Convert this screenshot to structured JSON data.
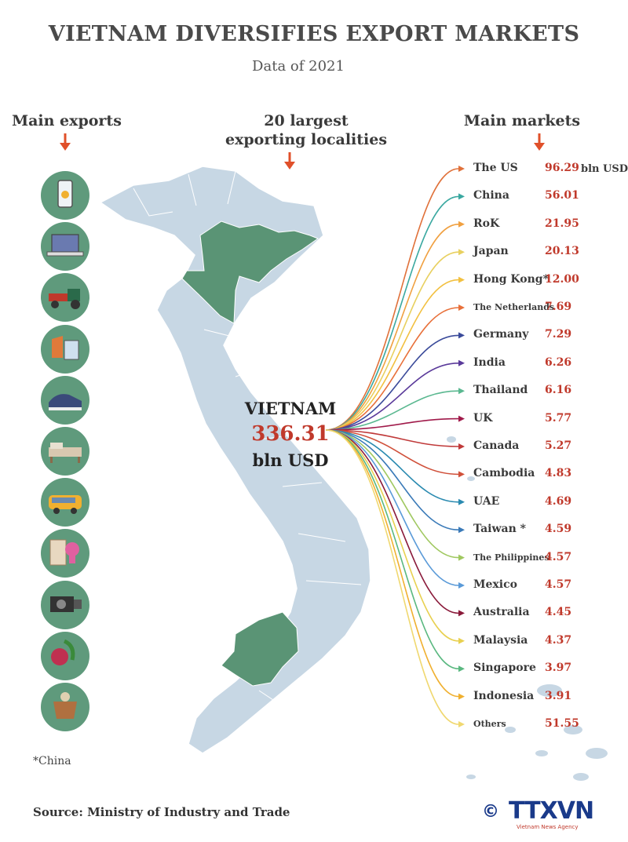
{
  "title": "VIETNAM DIVERSIFIES EXPORT MARKETS",
  "subtitle": "Data of 2021",
  "headings": {
    "main_exports": "Main exports",
    "localities_line1": "20 largest",
    "localities_line2": "exporting localities",
    "main_markets": "Main markets"
  },
  "vietnam": {
    "label": "VIETNAM",
    "value": "336.31",
    "unit": "bln USD"
  },
  "unit_label": "bln USD",
  "colors": {
    "accent": "#c0392b",
    "map": "#c7d7e4",
    "region": "#5a9475",
    "icon_bg": "#5f9a7c"
  },
  "exports_icons": [
    "smartphone-icon",
    "laptop-icon",
    "machinery-icon",
    "textiles-icon",
    "footwear-icon",
    "furniture-icon",
    "vehicle-icon",
    "handicraft-icon",
    "camera-icon",
    "vegetables-icon",
    "coffee-icon"
  ],
  "markets": [
    {
      "name": "The US",
      "value": "96.29",
      "small": false,
      "color": "#e0713a"
    },
    {
      "name": "China",
      "value": "56.01",
      "small": false,
      "color": "#3aa8a0"
    },
    {
      "name": "RoK",
      "value": "21.95",
      "small": false,
      "color": "#f0a040"
    },
    {
      "name": "Japan",
      "value": "20.13",
      "small": false,
      "color": "#e8d060"
    },
    {
      "name": "Hong Kong*",
      "value": "12.00",
      "small": false,
      "color": "#f2c040"
    },
    {
      "name": "The Netherlands",
      "value": "7.69",
      "small": true,
      "color": "#e8703a"
    },
    {
      "name": "Germany",
      "value": "7.29",
      "small": false,
      "color": "#3a4a9a"
    },
    {
      "name": "India",
      "value": "6.26",
      "small": false,
      "color": "#5a3a9a"
    },
    {
      "name": "Thailand",
      "value": "6.16",
      "small": false,
      "color": "#5ab890"
    },
    {
      "name": "UK",
      "value": "5.77",
      "small": false,
      "color": "#a01a4a"
    },
    {
      "name": "Canada",
      "value": "5.27",
      "small": false,
      "color": "#c03a3a"
    },
    {
      "name": "Cambodia",
      "value": "4.83",
      "small": false,
      "color": "#d0503a"
    },
    {
      "name": "UAE",
      "value": "4.69",
      "small": false,
      "color": "#2a8ab0"
    },
    {
      "name": "Taiwan *",
      "value": "4.59",
      "small": false,
      "color": "#3a7ab8"
    },
    {
      "name": "The Philippines",
      "value": "4.57",
      "small": true,
      "color": "#a0c860"
    },
    {
      "name": "Mexico",
      "value": "4.57",
      "small": false,
      "color": "#5a9ad8"
    },
    {
      "name": "Australia",
      "value": "4.45",
      "small": false,
      "color": "#8a1a3a"
    },
    {
      "name": "Malaysia",
      "value": "4.37",
      "small": false,
      "color": "#e8d050"
    },
    {
      "name": "Singapore",
      "value": "3.97",
      "small": false,
      "color": "#5ab880"
    },
    {
      "name": "Indonesia",
      "value": "3.91",
      "small": false,
      "color": "#f0b030"
    },
    {
      "name": "Others",
      "value": "51.55",
      "small": true,
      "color": "#f0d870"
    }
  ],
  "footnote": "*China",
  "source": "Source: Ministry of Industry and Trade",
  "logo": {
    "mark": "©",
    "text": "TTXVN",
    "sub": "Vietnam News Agency"
  }
}
